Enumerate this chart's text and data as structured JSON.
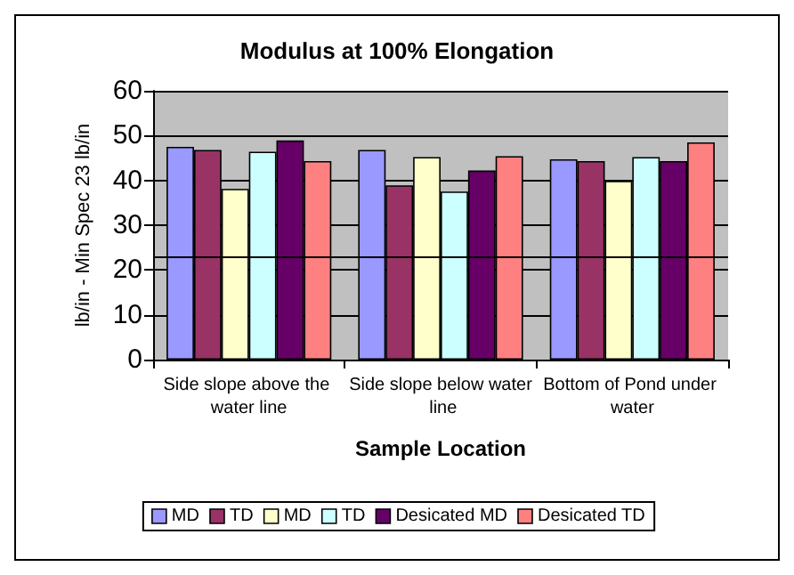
{
  "chart_data": {
    "type": "bar",
    "title": "Modulus at 100% Elongation",
    "xlabel": "Sample Location",
    "ylabel": "lb/in - Min Spec 23 lb/in",
    "categories": [
      "Side slope above the water line",
      "Side slope below water line",
      "Bottom of Pond under water"
    ],
    "series": [
      {
        "name": "MD",
        "color": "#9999ff",
        "values": [
          47.5,
          46.8,
          44.7
        ]
      },
      {
        "name": "TD",
        "color": "#993366",
        "values": [
          46.8,
          38.9,
          44.3
        ]
      },
      {
        "name": "MD",
        "color": "#ffffcc",
        "values": [
          38.1,
          45.2,
          39.9
        ]
      },
      {
        "name": "TD",
        "color": "#ccffff",
        "values": [
          46.4,
          37.5,
          45.2
        ]
      },
      {
        "name": "Desicated MD",
        "color": "#660066",
        "values": [
          48.9,
          42.2,
          44.3
        ]
      },
      {
        "name": "Desicated TD",
        "color": "#ff8080",
        "values": [
          44.3,
          45.4,
          48.5
        ]
      }
    ],
    "ylim": [
      0,
      60
    ],
    "yticks": [
      0,
      10,
      20,
      30,
      40,
      50,
      60
    ],
    "grid": "y",
    "legend": "bottom",
    "ref_lines": [
      {
        "axis": "y",
        "value": 23,
        "color": "#000000"
      }
    ]
  }
}
